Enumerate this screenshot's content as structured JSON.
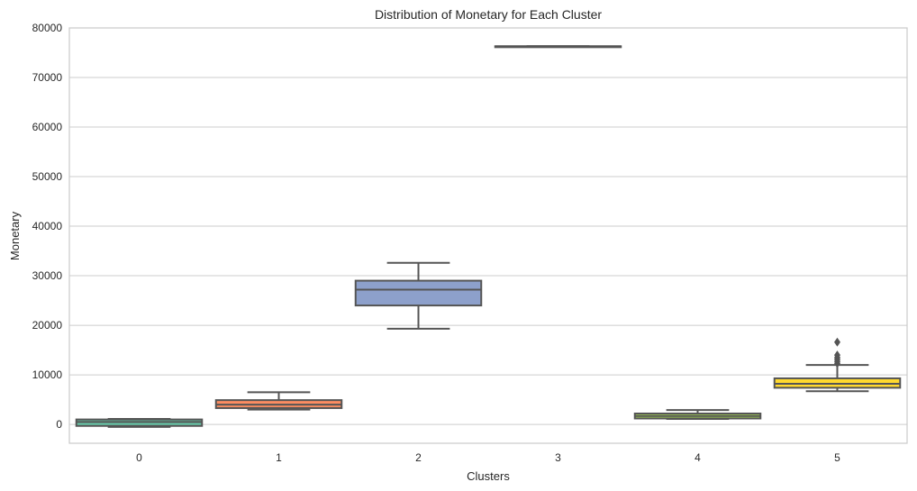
{
  "chart_data": {
    "type": "box",
    "title": "Distribution of Monetary for Each Cluster",
    "xlabel": "Clusters",
    "ylabel": "Monetary",
    "ylim": [
      -3800,
      80000
    ],
    "yticks": [
      0,
      10000,
      20000,
      30000,
      40000,
      50000,
      60000,
      70000,
      80000
    ],
    "ytick_labels": [
      "0",
      "10000",
      "20000",
      "30000",
      "40000",
      "50000",
      "60000",
      "70000",
      "80000"
    ],
    "grid": "horizontal",
    "categories": [
      "0",
      "1",
      "2",
      "3",
      "4",
      "5"
    ],
    "boxes": [
      {
        "category": "0",
        "whisker_low": -500,
        "q1": -300,
        "median": 500,
        "q3": 1000,
        "whisker_high": 1100,
        "outliers": [],
        "color": "#66c2a5"
      },
      {
        "category": "1",
        "whisker_low": 3000,
        "q1": 3300,
        "median": 4000,
        "q3": 4900,
        "whisker_high": 6500,
        "outliers": [],
        "color": "#fc8d62"
      },
      {
        "category": "2",
        "whisker_low": 19300,
        "q1": 24000,
        "median": 27200,
        "q3": 29000,
        "whisker_high": 32600,
        "outliers": [],
        "color": "#8da0cb"
      },
      {
        "category": "3",
        "whisker_low": 76300,
        "q1": 76300,
        "median": 76300,
        "q3": 76300,
        "whisker_high": 76300,
        "outliers": [],
        "color": "#e78ac3"
      },
      {
        "category": "4",
        "whisker_low": 1100,
        "q1": 1200,
        "median": 1700,
        "q3": 2200,
        "whisker_high": 2900,
        "outliers": [],
        "color": "#a6d854"
      },
      {
        "category": "5",
        "whisker_low": 6700,
        "q1": 7400,
        "median": 8200,
        "q3": 9300,
        "whisker_high": 12000,
        "outliers": [
          12300,
          12700,
          13100,
          13500,
          14000,
          16600
        ],
        "color": "#ffd92f"
      }
    ],
    "line_color": "#555555",
    "grid_color": "#cccccc"
  }
}
